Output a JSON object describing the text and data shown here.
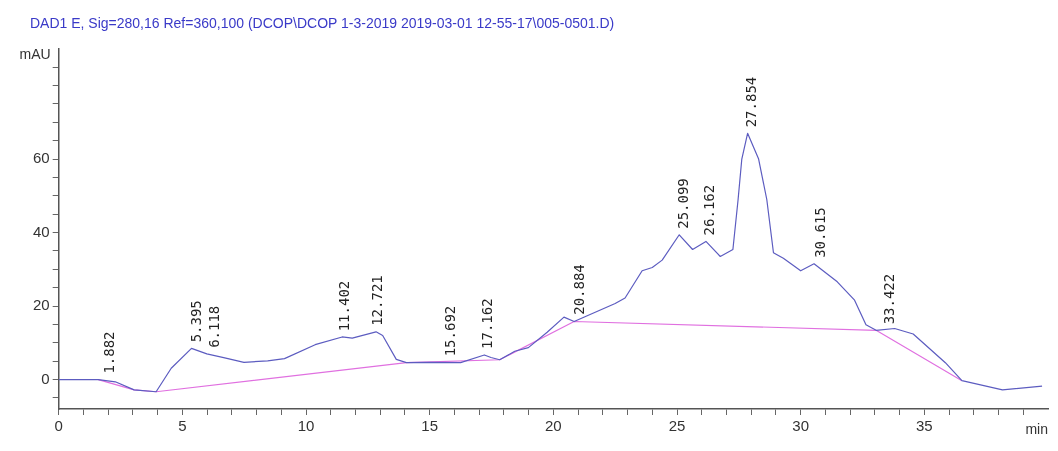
{
  "chart_data": {
    "type": "line",
    "title": "DAD1 E, Sig=280,16 Ref=360,100 (DCOP\\DCOP 1-3-2019 2019-03-01 12-55-17\\005-0501.D)",
    "xlabel": "min",
    "ylabel": "mAU",
    "xlim": [
      0,
      40
    ],
    "ylim": [
      -8,
      90
    ],
    "xticks": [
      0,
      {
        "value": 1,
        "label": null
      },
      {
        "value": 2,
        "label": null
      },
      {
        "value": 3,
        "label": null
      },
      {
        "value": 4,
        "label": null
      },
      5,
      {
        "value": 6,
        "label": null
      },
      {
        "value": 7,
        "label": null
      },
      {
        "value": 8,
        "label": null
      },
      {
        "value": 9,
        "label": null
      },
      10,
      {
        "value": 11,
        "label": null
      },
      {
        "value": 12,
        "label": null
      },
      {
        "value": 13,
        "label": null
      },
      {
        "value": 14,
        "label": null
      },
      15,
      {
        "value": 16,
        "label": null
      },
      {
        "value": 17,
        "label": null
      },
      {
        "value": 18,
        "label": null
      },
      {
        "value": 19,
        "label": null
      },
      20,
      {
        "value": 21,
        "label": null
      },
      {
        "value": 22,
        "label": null
      },
      {
        "value": 23,
        "label": null
      },
      {
        "value": 24,
        "label": null
      },
      25,
      {
        "value": 26,
        "label": null
      },
      {
        "value": 27,
        "label": null
      },
      {
        "value": 28,
        "label": null
      },
      {
        "value": 29,
        "label": null
      },
      30,
      {
        "value": 31,
        "label": null
      },
      {
        "value": 32,
        "label": null
      },
      {
        "value": 33,
        "label": null
      },
      {
        "value": 34,
        "label": null
      },
      35,
      {
        "value": 36,
        "label": null
      },
      {
        "value": 37,
        "label": null
      },
      {
        "value": 38,
        "label": null
      },
      {
        "value": 39,
        "label": null
      }
    ],
    "yticks": [
      {
        "value": -5,
        "label": null
      },
      0,
      {
        "value": 5,
        "label": null
      },
      {
        "value": 10,
        "label": null
      },
      {
        "value": 15,
        "label": null
      },
      20,
      {
        "value": 25,
        "label": null
      },
      {
        "value": 30,
        "label": null
      },
      {
        "value": 35,
        "label": null
      },
      40,
      {
        "value": 45,
        "label": null
      },
      {
        "value": 50,
        "label": null
      },
      {
        "value": 55,
        "label": null
      },
      60,
      {
        "value": 65,
        "label": null
      },
      {
        "value": 70,
        "label": null
      },
      {
        "value": 75,
        "label": null
      },
      {
        "value": 80,
        "label": null
      },
      {
        "value": 85,
        "label": null
      }
    ],
    "grid": false,
    "legend": false,
    "marker": "none",
    "line_style": "solid",
    "series": [
      {
        "color": "#5c5cc0",
        "x": [
          0,
          1.6,
          2.29,
          3.05,
          3.94,
          4.55,
          5.37,
          5.99,
          6.67,
          7.49,
          8.45,
          9.13,
          10.37,
          11.46,
          11.87,
          12.83,
          13.1,
          13.65,
          14.06,
          15.02,
          16.25,
          17.21,
          17.48,
          17.83,
          18.44,
          18.99,
          19.75,
          20.43,
          20.84,
          22.5,
          22.9,
          23.59,
          24.0,
          24.4,
          25.09,
          25.63,
          26.17,
          26.75,
          27.26,
          27.47,
          27.62,
          27.854,
          28.3,
          28.63,
          28.9,
          29.3,
          30.0,
          30.54,
          31.48,
          32.17,
          32.64,
          33.05,
          33.8,
          34.55,
          35.85,
          36.52,
          38.16,
          39.76
        ],
        "values": [
          0,
          0,
          -0.6,
          -2.8,
          -3.3,
          3.1,
          8.5,
          7,
          6,
          4.7,
          5.1,
          5.7,
          9.5,
          11.6,
          11.3,
          13,
          12,
          5.5,
          4.6,
          4.7,
          4.6,
          6.7,
          6,
          5.4,
          7.7,
          8.7,
          12.9,
          17,
          15.8,
          20.7,
          22.2,
          29.6,
          30.5,
          32.5,
          39.4,
          35.4,
          37.6,
          33.5,
          35.4,
          49,
          60,
          67,
          60,
          49,
          34.5,
          33,
          29.6,
          31.5,
          26.6,
          21.7,
          14.9,
          13.4,
          13.9,
          12.4,
          4.6,
          -0.3,
          -2.8,
          -1.8
        ]
      },
      {
        "color": "#e070e0",
        "x": [
          1.6,
          3.05,
          3.94,
          14.06,
          17.83,
          20.84,
          33.05,
          36.52
        ],
        "values": [
          0,
          -2.8,
          -3.3,
          4.6,
          5.4,
          15.8,
          13.4,
          -0.3
        ]
      }
    ],
    "annotations": [
      {
        "text": "1.882",
        "x": 1.882,
        "y": 0
      },
      {
        "text": "5.395",
        "x": 5.395,
        "y": 8.5
      },
      {
        "text": "6.118",
        "x": 6.118,
        "y": 7
      },
      {
        "text": "11.402",
        "x": 11.402,
        "y": 11.5
      },
      {
        "text": "12.721",
        "x": 12.721,
        "y": 13
      },
      {
        "text": "15.692",
        "x": 15.692,
        "y": 4.7
      },
      {
        "text": "17.162",
        "x": 17.162,
        "y": 6.7
      },
      {
        "text": "20.884",
        "x": 20.884,
        "y": 16
      },
      {
        "text": "25.099",
        "x": 25.099,
        "y": 39.4
      },
      {
        "text": "26.162",
        "x": 26.162,
        "y": 37.6
      },
      {
        "text": "27.854",
        "x": 27.854,
        "y": 67
      },
      {
        "text": "30.615",
        "x": 30.615,
        "y": 31.5
      },
      {
        "text": "33.422",
        "x": 33.422,
        "y": 13.4
      }
    ]
  }
}
